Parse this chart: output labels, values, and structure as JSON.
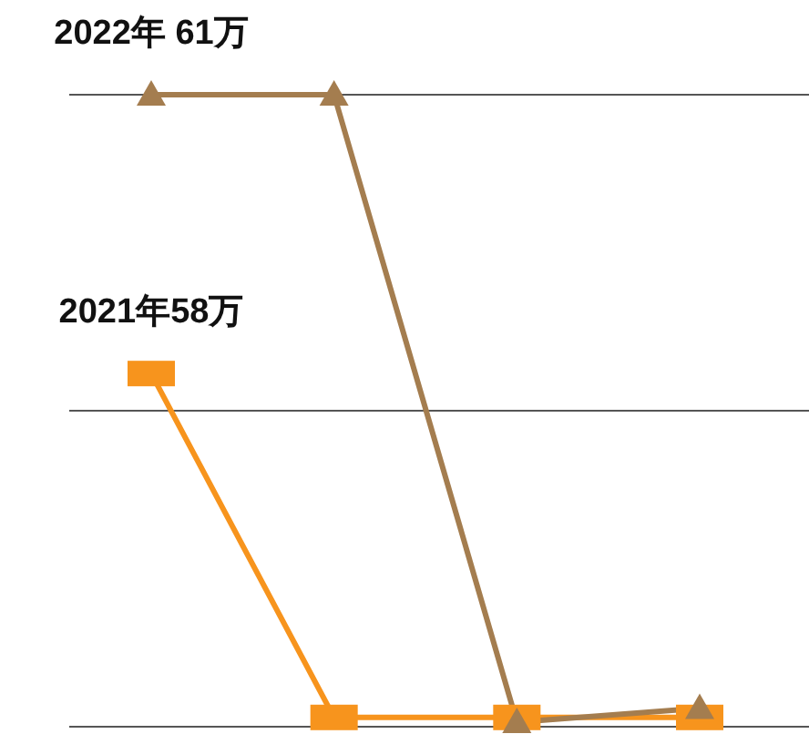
{
  "chart_data": {
    "type": "line",
    "grid": "y",
    "categories": [
      null,
      null,
      null,
      null
    ],
    "ylim": [
      54.2,
      61
    ],
    "yticks": [
      {
        "value": 54.2,
        "label": null
      },
      {
        "value": 57.6,
        "label": null
      },
      {
        "value": 61,
        "label": null
      }
    ],
    "series": [
      {
        "color": "#a47d4f",
        "marker": "triangle",
        "values": [
          61,
          61,
          54.25,
          54.4
        ],
        "value_labels": [
          "2022年 61万",
          null,
          null,
          null
        ]
      },
      {
        "color": "#f7941d",
        "marker": "square",
        "values": [
          58,
          54.3,
          54.3,
          54.3
        ],
        "value_labels": [
          "2021年58万",
          null,
          null,
          null
        ]
      }
    ]
  }
}
